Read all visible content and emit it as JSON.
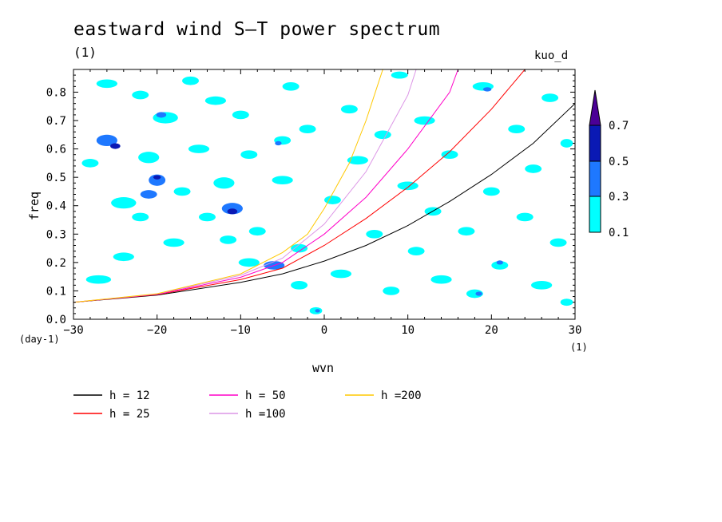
{
  "chart_data": {
    "type": "heatmap",
    "title": "eastward wind S–T power spectrum",
    "subtitle_left": "(1)",
    "subtitle_right": "kuo_d",
    "xlabel": "wvn",
    "ylabel": "freq",
    "x_unit": "(1)",
    "y_unit": "(day-1)",
    "xlim": [
      -30,
      30
    ],
    "ylim": [
      0,
      0.88
    ],
    "x_ticks": [
      -30,
      -20,
      -10,
      0,
      10,
      20,
      30
    ],
    "x_tick_labels": [
      "−30",
      "−20",
      "−10",
      "0",
      "10",
      "20",
      "30"
    ],
    "y_ticks": [
      0,
      0.1,
      0.2,
      0.3,
      0.4,
      0.5,
      0.6,
      0.7,
      0.8
    ],
    "y_tick_labels": [
      "0.0",
      "0.1",
      "0.2",
      "0.3",
      "0.4",
      "0.5",
      "0.6",
      "0.7",
      "0.8"
    ],
    "colorbar": {
      "levels": [
        "0.1",
        "0.3",
        "0.5",
        "0.7"
      ],
      "colors": [
        "#00ffff",
        "#1e78ff",
        "#0a19b4",
        "#4b0096"
      ]
    },
    "dispersion_curves": [
      {
        "name": "h = 12",
        "color": "#000000",
        "x": [
          -30,
          -20,
          -10,
          -5,
          0,
          5,
          10,
          15,
          20,
          25,
          30
        ],
        "y": [
          0.06,
          0.085,
          0.13,
          0.16,
          0.205,
          0.26,
          0.33,
          0.415,
          0.51,
          0.62,
          0.76
        ]
      },
      {
        "name": "h = 25",
        "color": "#ff0000",
        "x": [
          -30,
          -20,
          -10,
          -5,
          0,
          5,
          10,
          15,
          20,
          24
        ],
        "y": [
          0.06,
          0.087,
          0.14,
          0.18,
          0.26,
          0.355,
          0.465,
          0.59,
          0.74,
          0.88
        ]
      },
      {
        "name": "h = 50",
        "color": "#ff00c8",
        "x": [
          -30,
          -20,
          -10,
          -5,
          0,
          5,
          10,
          15,
          16
        ],
        "y": [
          0.06,
          0.088,
          0.148,
          0.2,
          0.3,
          0.43,
          0.6,
          0.8,
          0.88
        ]
      },
      {
        "name": "h =100",
        "color": "#dc96e6",
        "x": [
          -30,
          -20,
          -10,
          -5,
          0,
          5,
          10,
          11
        ],
        "y": [
          0.06,
          0.089,
          0.155,
          0.215,
          0.335,
          0.52,
          0.79,
          0.88
        ]
      },
      {
        "name": "h =200",
        "color": "#ffc800",
        "x": [
          -30,
          -20,
          -10,
          -5,
          -2,
          0,
          3,
          5,
          7
        ],
        "y": [
          0.06,
          0.09,
          0.16,
          0.235,
          0.3,
          0.39,
          0.55,
          0.7,
          0.88
        ]
      }
    ],
    "power_blobs": [
      {
        "x": -26,
        "y": 0.63,
        "w": 2.5,
        "h": 0.04,
        "level": 2
      },
      {
        "x": -25,
        "y": 0.61,
        "w": 1.2,
        "h": 0.02,
        "level": 3
      },
      {
        "x": -28,
        "y": 0.55,
        "w": 2,
        "h": 0.03,
        "level": 1
      },
      {
        "x": -22,
        "y": 0.79,
        "w": 2,
        "h": 0.03,
        "level": 1
      },
      {
        "x": -26,
        "y": 0.83,
        "w": 2.5,
        "h": 0.03,
        "level": 1
      },
      {
        "x": -27,
        "y": 0.14,
        "w": 3,
        "h": 0.03,
        "level": 1
      },
      {
        "x": -24,
        "y": 0.41,
        "w": 3,
        "h": 0.04,
        "level": 1
      },
      {
        "x": -24,
        "y": 0.22,
        "w": 2.5,
        "h": 0.03,
        "level": 1
      },
      {
        "x": -22,
        "y": 0.36,
        "w": 2,
        "h": 0.03,
        "level": 1
      },
      {
        "x": -21,
        "y": 0.57,
        "w": 2.5,
        "h": 0.04,
        "level": 1
      },
      {
        "x": -20,
        "y": 0.49,
        "w": 2,
        "h": 0.04,
        "level": 2
      },
      {
        "x": -20,
        "y": 0.5,
        "w": 0.9,
        "h": 0.015,
        "level": 3
      },
      {
        "x": -19,
        "y": 0.71,
        "w": 3,
        "h": 0.04,
        "level": 1
      },
      {
        "x": -19.5,
        "y": 0.72,
        "w": 1.2,
        "h": 0.02,
        "level": 2
      },
      {
        "x": -18,
        "y": 0.27,
        "w": 2.5,
        "h": 0.03,
        "level": 1
      },
      {
        "x": -21,
        "y": 0.44,
        "w": 2,
        "h": 0.03,
        "level": 2
      },
      {
        "x": -17,
        "y": 0.45,
        "w": 2,
        "h": 0.03,
        "level": 1
      },
      {
        "x": -16,
        "y": 0.84,
        "w": 2,
        "h": 0.03,
        "level": 1
      },
      {
        "x": -15,
        "y": 0.6,
        "w": 2.5,
        "h": 0.03,
        "level": 1
      },
      {
        "x": -14,
        "y": 0.36,
        "w": 2,
        "h": 0.03,
        "level": 1
      },
      {
        "x": -13,
        "y": 0.77,
        "w": 2.5,
        "h": 0.03,
        "level": 1
      },
      {
        "x": -12,
        "y": 0.48,
        "w": 2.5,
        "h": 0.04,
        "level": 1
      },
      {
        "x": -11,
        "y": 0.39,
        "w": 2.5,
        "h": 0.04,
        "level": 2
      },
      {
        "x": -11,
        "y": 0.38,
        "w": 1.2,
        "h": 0.02,
        "level": 3
      },
      {
        "x": -11.5,
        "y": 0.28,
        "w": 2,
        "h": 0.03,
        "level": 1
      },
      {
        "x": -10,
        "y": 0.72,
        "w": 2,
        "h": 0.03,
        "level": 1
      },
      {
        "x": -9,
        "y": 0.2,
        "w": 2.5,
        "h": 0.03,
        "level": 1
      },
      {
        "x": -9,
        "y": 0.58,
        "w": 2,
        "h": 0.03,
        "level": 1
      },
      {
        "x": -8,
        "y": 0.31,
        "w": 2,
        "h": 0.03,
        "level": 1
      },
      {
        "x": -6,
        "y": 0.19,
        "w": 2.5,
        "h": 0.03,
        "level": 2
      },
      {
        "x": -5,
        "y": 0.49,
        "w": 2.5,
        "h": 0.03,
        "level": 1
      },
      {
        "x": -5,
        "y": 0.63,
        "w": 2,
        "h": 0.03,
        "level": 1
      },
      {
        "x": -5.5,
        "y": 0.62,
        "w": 0.8,
        "h": 0.015,
        "level": 2
      },
      {
        "x": -4,
        "y": 0.82,
        "w": 2,
        "h": 0.03,
        "level": 1
      },
      {
        "x": -3,
        "y": 0.25,
        "w": 2,
        "h": 0.03,
        "level": 1
      },
      {
        "x": -3,
        "y": 0.12,
        "w": 2,
        "h": 0.03,
        "level": 1
      },
      {
        "x": -2,
        "y": 0.67,
        "w": 2,
        "h": 0.03,
        "level": 1
      },
      {
        "x": -1,
        "y": 0.03,
        "w": 1.5,
        "h": 0.025,
        "level": 1
      },
      {
        "x": -0.8,
        "y": 0.03,
        "w": 0.6,
        "h": 0.012,
        "level": 2
      },
      {
        "x": 1,
        "y": 0.42,
        "w": 2,
        "h": 0.03,
        "level": 1
      },
      {
        "x": 2,
        "y": 0.16,
        "w": 2.5,
        "h": 0.03,
        "level": 1
      },
      {
        "x": 3,
        "y": 0.74,
        "w": 2,
        "h": 0.03,
        "level": 1
      },
      {
        "x": 4,
        "y": 0.56,
        "w": 2.5,
        "h": 0.03,
        "level": 1
      },
      {
        "x": 6,
        "y": 0.3,
        "w": 2,
        "h": 0.03,
        "level": 1
      },
      {
        "x": 7,
        "y": 0.65,
        "w": 2,
        "h": 0.03,
        "level": 1
      },
      {
        "x": 8,
        "y": 0.1,
        "w": 2,
        "h": 0.03,
        "level": 1
      },
      {
        "x": 9,
        "y": 0.86,
        "w": 2,
        "h": 0.025,
        "level": 1
      },
      {
        "x": 10,
        "y": 0.47,
        "w": 2.5,
        "h": 0.03,
        "level": 1
      },
      {
        "x": 11,
        "y": 0.24,
        "w": 2,
        "h": 0.03,
        "level": 1
      },
      {
        "x": 12,
        "y": 0.7,
        "w": 2.5,
        "h": 0.03,
        "level": 1
      },
      {
        "x": 13,
        "y": 0.38,
        "w": 2,
        "h": 0.03,
        "level": 1
      },
      {
        "x": 14,
        "y": 0.14,
        "w": 2.5,
        "h": 0.03,
        "level": 1
      },
      {
        "x": 15,
        "y": 0.58,
        "w": 2,
        "h": 0.03,
        "level": 1
      },
      {
        "x": 17,
        "y": 0.31,
        "w": 2,
        "h": 0.03,
        "level": 1
      },
      {
        "x": 18,
        "y": 0.09,
        "w": 2,
        "h": 0.03,
        "level": 1
      },
      {
        "x": 18.5,
        "y": 0.09,
        "w": 0.8,
        "h": 0.015,
        "level": 2
      },
      {
        "x": 19,
        "y": 0.82,
        "w": 2.5,
        "h": 0.03,
        "level": 1
      },
      {
        "x": 19.5,
        "y": 0.81,
        "w": 1,
        "h": 0.015,
        "level": 2
      },
      {
        "x": 20,
        "y": 0.45,
        "w": 2,
        "h": 0.03,
        "level": 1
      },
      {
        "x": 21,
        "y": 0.19,
        "w": 2,
        "h": 0.03,
        "level": 1
      },
      {
        "x": 21,
        "y": 0.2,
        "w": 0.8,
        "h": 0.015,
        "level": 2
      },
      {
        "x": 23,
        "y": 0.67,
        "w": 2,
        "h": 0.03,
        "level": 1
      },
      {
        "x": 24,
        "y": 0.36,
        "w": 2,
        "h": 0.03,
        "level": 1
      },
      {
        "x": 25,
        "y": 0.53,
        "w": 2,
        "h": 0.03,
        "level": 1
      },
      {
        "x": 26,
        "y": 0.12,
        "w": 2.5,
        "h": 0.03,
        "level": 1
      },
      {
        "x": 27,
        "y": 0.78,
        "w": 2,
        "h": 0.03,
        "level": 1
      },
      {
        "x": 28,
        "y": 0.27,
        "w": 2,
        "h": 0.03,
        "level": 1
      },
      {
        "x": 29,
        "y": 0.06,
        "w": 1.5,
        "h": 0.025,
        "level": 1
      },
      {
        "x": 29,
        "y": 0.62,
        "w": 1.5,
        "h": 0.03,
        "level": 1
      }
    ]
  }
}
